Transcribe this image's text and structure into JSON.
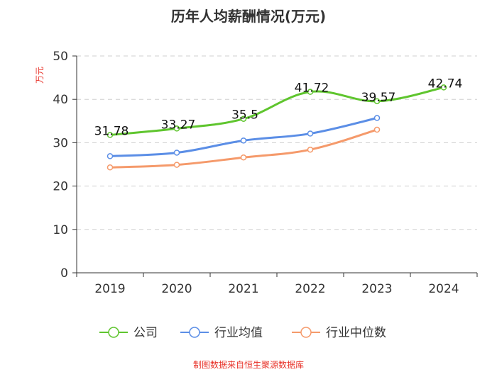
{
  "chart_data": {
    "type": "line",
    "title": "历年人均薪酬情况(万元)",
    "xlabel": "",
    "ylabel": "万元",
    "categories": [
      "2019",
      "2020",
      "2021",
      "2022",
      "2023",
      "2024"
    ],
    "ylim": [
      0,
      50
    ],
    "yticks": [
      0,
      10,
      20,
      30,
      40,
      50
    ],
    "grid": true,
    "legend_position": "bottom-center",
    "series": [
      {
        "name": "公司",
        "color": "#5fc52e",
        "values": [
          31.78,
          33.27,
          35.5,
          41.72,
          39.57,
          42.74
        ],
        "labels": [
          "31.78",
          "33.27",
          "35.5",
          "41.72",
          "39.57",
          "42.74"
        ]
      },
      {
        "name": "行业均值",
        "color": "#5b8ee6",
        "values": [
          26.9,
          27.7,
          30.5,
          32.1,
          35.7,
          null
        ]
      },
      {
        "name": "行业中位数",
        "color": "#f59a6b",
        "values": [
          24.3,
          24.9,
          26.6,
          28.4,
          33.0,
          null
        ]
      }
    ]
  },
  "footer": {
    "source": "制图数据来自恒生聚源数据库"
  }
}
